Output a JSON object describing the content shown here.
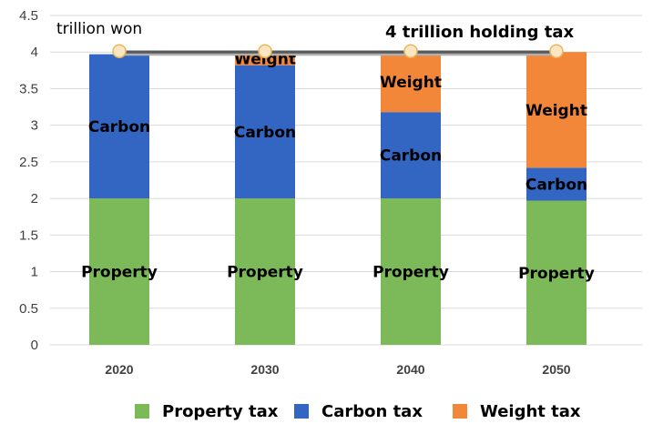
{
  "chart_data": {
    "type": "bar",
    "stacked": true,
    "categories": [
      "2020",
      "2030",
      "2040",
      "2050"
    ],
    "series": [
      {
        "name": "Property tax",
        "color": "#7cba59",
        "values": [
          2.0,
          2.0,
          2.0,
          1.97
        ],
        "segment_label": "Property"
      },
      {
        "name": "Carbon tax",
        "color": "#3366c2",
        "values": [
          1.97,
          1.82,
          1.18,
          0.45
        ],
        "segment_label": "Carbon"
      },
      {
        "name": "Weight tax",
        "color": "#f2873a",
        "values": [
          0.0,
          0.18,
          0.82,
          1.58
        ],
        "segment_label": "Weight"
      }
    ],
    "ylim": [
      0,
      4.5
    ],
    "yticks": [
      "0",
      "0.5",
      "1",
      "1.5",
      "2",
      "2.5",
      "3",
      "3.5",
      "4",
      "4.5"
    ],
    "unit_label": "trillion won",
    "annotation": "4 trillion holding tax",
    "reference_line_value": 4,
    "legend_position": "bottom",
    "grid": true
  }
}
